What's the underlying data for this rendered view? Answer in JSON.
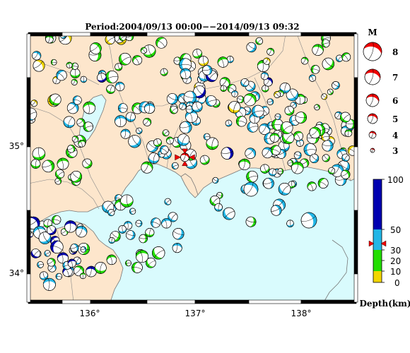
{
  "title": "Period:2004/09/13 00:00−−2014/09/13 09:32",
  "map": {
    "lon_ticks": [
      "136°",
      "137°",
      "138°"
    ],
    "lat_ticks": [
      "35°",
      "34°"
    ],
    "lon_range": [
      135.45,
      138.55
    ],
    "lat_range": [
      33.78,
      35.65
    ],
    "colors": {
      "land": "#fde6cc",
      "sea": "#d9fbfd",
      "border": "#777777"
    }
  },
  "magnitude_legend": {
    "heading": "M",
    "items": [
      {
        "label": "8",
        "magnitude": 8
      },
      {
        "label": "7",
        "magnitude": 7
      },
      {
        "label": "6",
        "magnitude": 6
      },
      {
        "label": "5",
        "magnitude": 5
      },
      {
        "label": "4",
        "magnitude": 4
      },
      {
        "label": "3",
        "magnitude": 3
      }
    ],
    "color": "#ee0000"
  },
  "depth_legend": {
    "ticks": [
      "100",
      "50",
      "30",
      "20",
      "10",
      "0"
    ],
    "unit_label": "Depth(km)",
    "bands": [
      {
        "from": 0,
        "to": 10,
        "color": "#f2d600"
      },
      {
        "from": 10,
        "to": 30,
        "color": "#22dd00"
      },
      {
        "from": 30,
        "to": 50,
        "color": "#22b6e6"
      },
      {
        "from": 50,
        "to": 100,
        "color": "#0000b0"
      }
    ]
  },
  "mainshock": {
    "lon": 136.93,
    "lat": 34.79,
    "color": "#ee0000"
  }
}
